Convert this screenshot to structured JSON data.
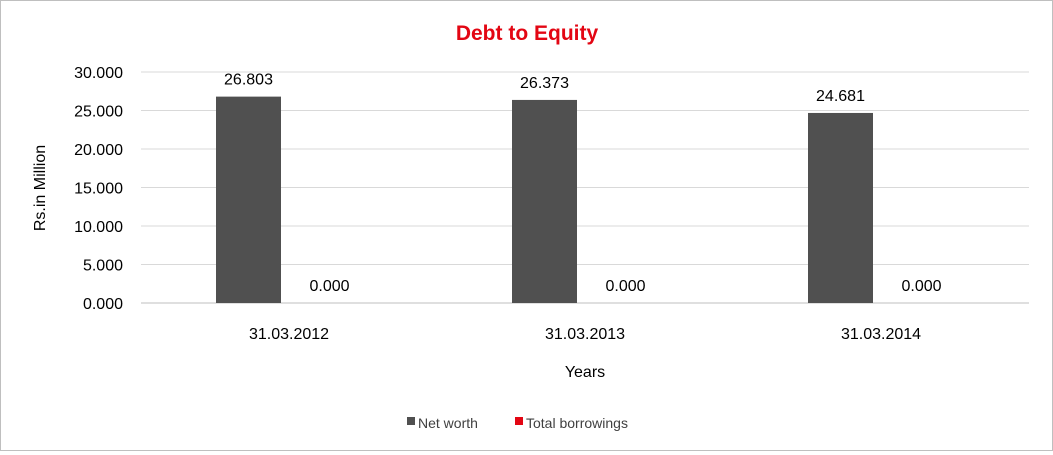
{
  "chart_data": {
    "type": "bar",
    "title": "Debt to Equity",
    "title_color": "#e30613",
    "xlabel": "Years",
    "ylabel": "Rs.in Million",
    "categories": [
      "31.03.2012",
      "31.03.2013",
      "31.03.2014"
    ],
    "series": [
      {
        "name": "Net worth",
        "values": [
          26.803,
          26.373,
          24.681
        ],
        "color": "#505050"
      },
      {
        "name": "Total borrowings",
        "values": [
          0.0,
          0.0,
          0.0
        ],
        "color": "#e30613"
      }
    ],
    "data_labels": [
      [
        "26.803",
        "26.373",
        "24.681"
      ],
      [
        "0.000",
        "0.000",
        "0.000"
      ]
    ],
    "ylim": [
      0,
      30
    ],
    "yticks": [
      "0.000",
      "5.000",
      "10.000",
      "15.000",
      "20.000",
      "25.000",
      "30.000"
    ],
    "grid": true,
    "legend_position": "bottom"
  }
}
